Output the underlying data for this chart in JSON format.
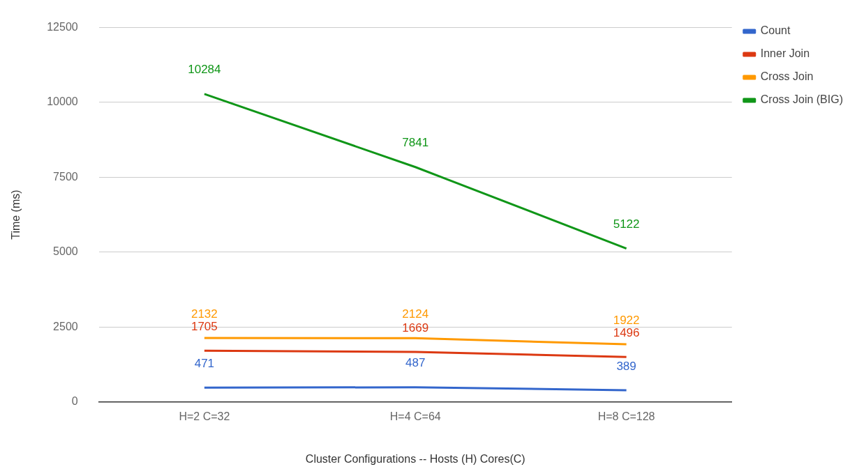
{
  "chart_data": {
    "type": "line",
    "xlabel": "Cluster Configurations -- Hosts (H) Cores(C)",
    "ylabel": "Time (ms)",
    "categories": [
      "H=2 C=32",
      "H=4 C=64",
      "H=8 C=128"
    ],
    "series": [
      {
        "name": "Count",
        "color": "#3366cc",
        "values": [
          471,
          487,
          389
        ]
      },
      {
        "name": "Inner Join",
        "color": "#dc3912",
        "values": [
          1705,
          1669,
          1496
        ]
      },
      {
        "name": "Cross Join",
        "color": "#ff9900",
        "values": [
          2132,
          2124,
          1922
        ]
      },
      {
        "name": "Cross Join (BIG)",
        "color": "#109618",
        "values": [
          10284,
          7841,
          5122
        ]
      }
    ],
    "ylim": [
      0,
      12500
    ],
    "yticks": [
      0,
      2500,
      5000,
      7500,
      10000,
      12500
    ],
    "grid": "y",
    "legend": "top right",
    "marker": "none",
    "data_labels": true
  }
}
